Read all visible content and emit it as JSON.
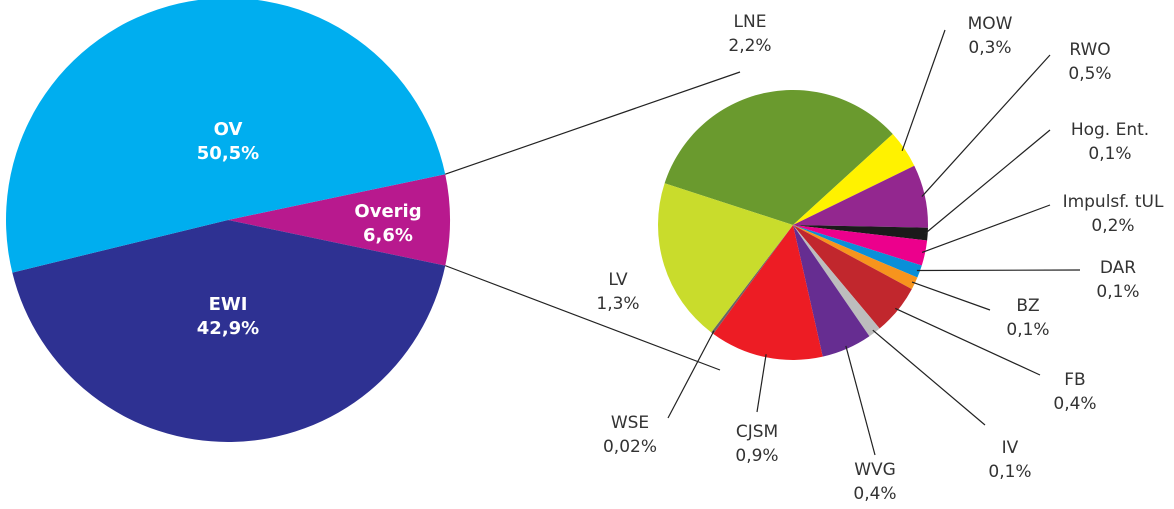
{
  "chart_data": [
    {
      "type": "pie",
      "categories": [
        "Overig",
        "EWI",
        "OV"
      ],
      "values": [
        6.6,
        42.9,
        50.5
      ],
      "value_labels": [
        "6,6%",
        "42,9%",
        "50,5%"
      ],
      "colors": [
        "#b8198e",
        "#2e3192",
        "#00aeef"
      ]
    },
    {
      "type": "pie",
      "categories": [
        "LNE",
        "MOW",
        "RWO",
        "Hog. Ent.",
        "Impulsf. tUL",
        "DAR",
        "BZ",
        "FB",
        "IV",
        "WVG",
        "CJSM",
        "WSE",
        "LV"
      ],
      "values": [
        2.2,
        0.3,
        0.5,
        0.1,
        0.2,
        0.1,
        0.1,
        0.4,
        0.1,
        0.4,
        0.9,
        0.02,
        1.3
      ],
      "value_labels": [
        "2,2%",
        "0,3%",
        "0,5%",
        "0,1%",
        "0,2%",
        "0,1%",
        "0,1%",
        "0,4%",
        "0,1%",
        "0,4%",
        "0,9%",
        "0,02%",
        "1,3%"
      ],
      "colors": [
        "#6a9a2e",
        "#fff200",
        "#93278f",
        "#1a1a1a",
        "#ec008c",
        "#0a8fd8",
        "#f7941d",
        "#c1272d",
        "#bdbdbd",
        "#662d91",
        "#ed1c24",
        "#666666",
        "#c9dc2c"
      ]
    }
  ]
}
